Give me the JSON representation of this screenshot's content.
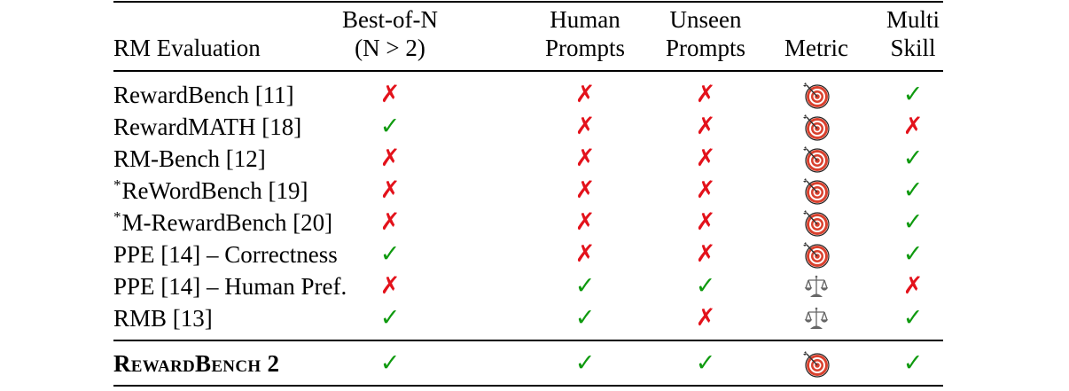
{
  "table": {
    "columns": [
      {
        "key": "name",
        "lines": [
          "",
          "RM Evaluation"
        ]
      },
      {
        "key": "best_of_n",
        "lines": [
          "Best-of-N",
          "(N > 2)"
        ]
      },
      {
        "key": "human_prompts",
        "lines": [
          "Human",
          "Prompts"
        ]
      },
      {
        "key": "unseen_prompts",
        "lines": [
          "Unseen",
          "Prompts"
        ]
      },
      {
        "key": "metric",
        "lines": [
          "",
          "Metric"
        ]
      },
      {
        "key": "multi_skill",
        "lines": [
          "Multi",
          "Skill"
        ]
      }
    ],
    "rows": [
      {
        "prefix": "",
        "name": "RewardBench [11]",
        "best_of_n": "no",
        "human_prompts": "no",
        "unseen_prompts": "no",
        "metric": "target-icon",
        "multi_skill": "yes"
      },
      {
        "prefix": "",
        "name": "RewardMATH [18]",
        "best_of_n": "yes",
        "human_prompts": "no",
        "unseen_prompts": "no",
        "metric": "target-icon",
        "multi_skill": "no"
      },
      {
        "prefix": "",
        "name": "RM-Bench [12]",
        "best_of_n": "no",
        "human_prompts": "no",
        "unseen_prompts": "no",
        "metric": "target-icon",
        "multi_skill": "yes"
      },
      {
        "prefix": "*",
        "name": "ReWordBench [19]",
        "best_of_n": "no",
        "human_prompts": "no",
        "unseen_prompts": "no",
        "metric": "target-icon",
        "multi_skill": "yes"
      },
      {
        "prefix": "*",
        "name": "M-RewardBench [20]",
        "best_of_n": "no",
        "human_prompts": "no",
        "unseen_prompts": "no",
        "metric": "target-icon",
        "multi_skill": "yes"
      },
      {
        "prefix": "",
        "name": "PPE [14] – Correctness",
        "best_of_n": "yes",
        "human_prompts": "no",
        "unseen_prompts": "no",
        "metric": "target-icon",
        "multi_skill": "yes"
      },
      {
        "prefix": "",
        "name": "PPE [14] – Human Pref.",
        "best_of_n": "no",
        "human_prompts": "yes",
        "unseen_prompts": "yes",
        "metric": "scales-icon",
        "multi_skill": "no"
      },
      {
        "prefix": "",
        "name": "RMB [13]",
        "best_of_n": "yes",
        "human_prompts": "yes",
        "unseen_prompts": "no",
        "metric": "scales-icon",
        "multi_skill": "yes"
      }
    ],
    "highlight_row": {
      "prefix": "",
      "name": "RewardBench 2",
      "best_of_n": "yes",
      "human_prompts": "yes",
      "unseen_prompts": "yes",
      "metric": "target-icon",
      "multi_skill": "yes"
    }
  },
  "symbols": {
    "yes": "✓",
    "no": "✗"
  },
  "colors": {
    "check": "#0f9a0f",
    "cross": "#e3121b",
    "target_red": "#d9412e",
    "scales_gray": "#666666"
  }
}
